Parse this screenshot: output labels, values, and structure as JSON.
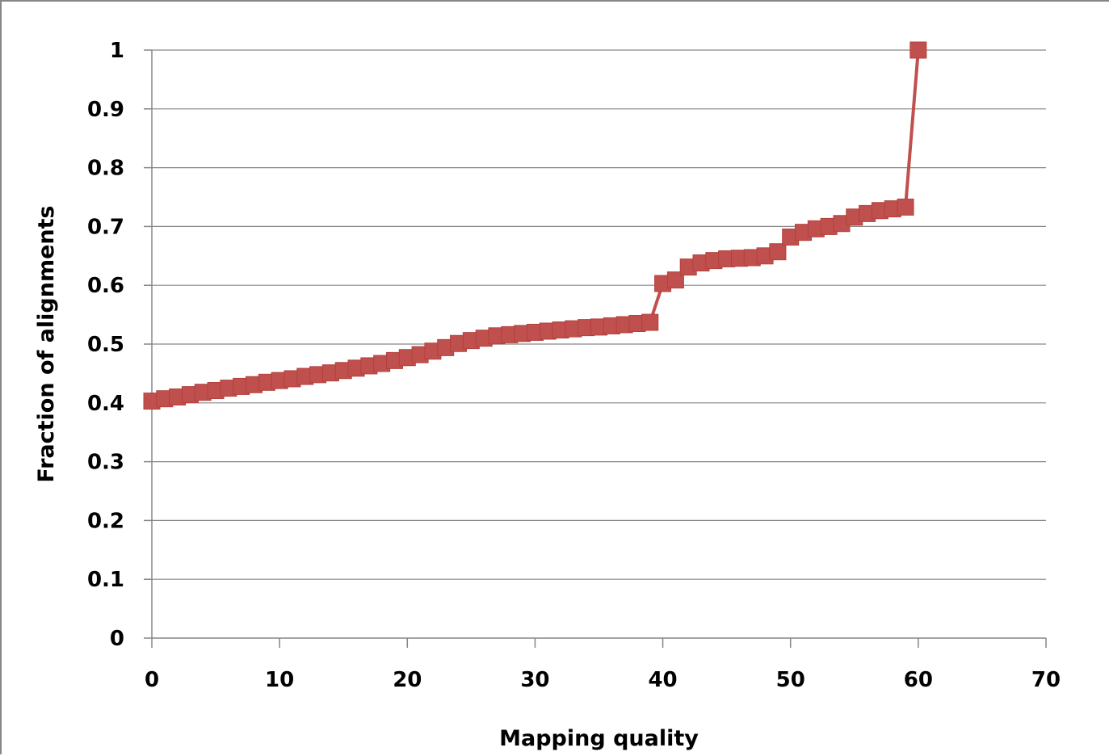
{
  "chart_data": {
    "type": "line",
    "title": "",
    "xlabel": "Mapping quality",
    "ylabel": "Fraction of alignments",
    "xlim": [
      0,
      70
    ],
    "ylim": [
      0,
      1
    ],
    "x_ticks": [
      0,
      10,
      20,
      30,
      40,
      50,
      60,
      70
    ],
    "x_tick_labels": [
      "0",
      "10",
      "20",
      "30",
      "40",
      "50",
      "60",
      "70"
    ],
    "y_ticks": [
      0,
      0.1,
      0.2,
      0.3,
      0.4,
      0.5,
      0.6,
      0.7,
      0.8,
      0.9,
      1
    ],
    "y_tick_labels": [
      "0",
      "0.1",
      "0.2",
      "0.3",
      "0.4",
      "0.5",
      "0.6",
      "0.7",
      "0.8",
      "0.9",
      "1"
    ],
    "grid": "horizontal",
    "legend": "none",
    "series": [
      {
        "color": "#c0504d",
        "marker": "square",
        "x": [
          0,
          1,
          2,
          3,
          4,
          5,
          6,
          7,
          8,
          9,
          10,
          11,
          12,
          13,
          14,
          15,
          16,
          17,
          18,
          19,
          20,
          21,
          22,
          23,
          24,
          25,
          26,
          27,
          28,
          29,
          30,
          31,
          32,
          33,
          34,
          35,
          36,
          37,
          38,
          39,
          40,
          41,
          42,
          43,
          44,
          45,
          46,
          47,
          48,
          49,
          50,
          51,
          52,
          53,
          54,
          55,
          56,
          57,
          58,
          59,
          60
        ],
        "y": [
          0.403,
          0.407,
          0.41,
          0.414,
          0.418,
          0.421,
          0.425,
          0.428,
          0.431,
          0.435,
          0.438,
          0.441,
          0.445,
          0.448,
          0.451,
          0.455,
          0.459,
          0.463,
          0.467,
          0.472,
          0.477,
          0.482,
          0.488,
          0.494,
          0.501,
          0.506,
          0.51,
          0.514,
          0.516,
          0.518,
          0.52,
          0.522,
          0.524,
          0.526,
          0.528,
          0.529,
          0.531,
          0.533,
          0.535,
          0.537,
          0.603,
          0.609,
          0.631,
          0.638,
          0.642,
          0.645,
          0.646,
          0.647,
          0.65,
          0.657,
          0.682,
          0.69,
          0.696,
          0.7,
          0.705,
          0.716,
          0.722,
          0.727,
          0.73,
          0.733,
          1.0
        ]
      }
    ]
  }
}
